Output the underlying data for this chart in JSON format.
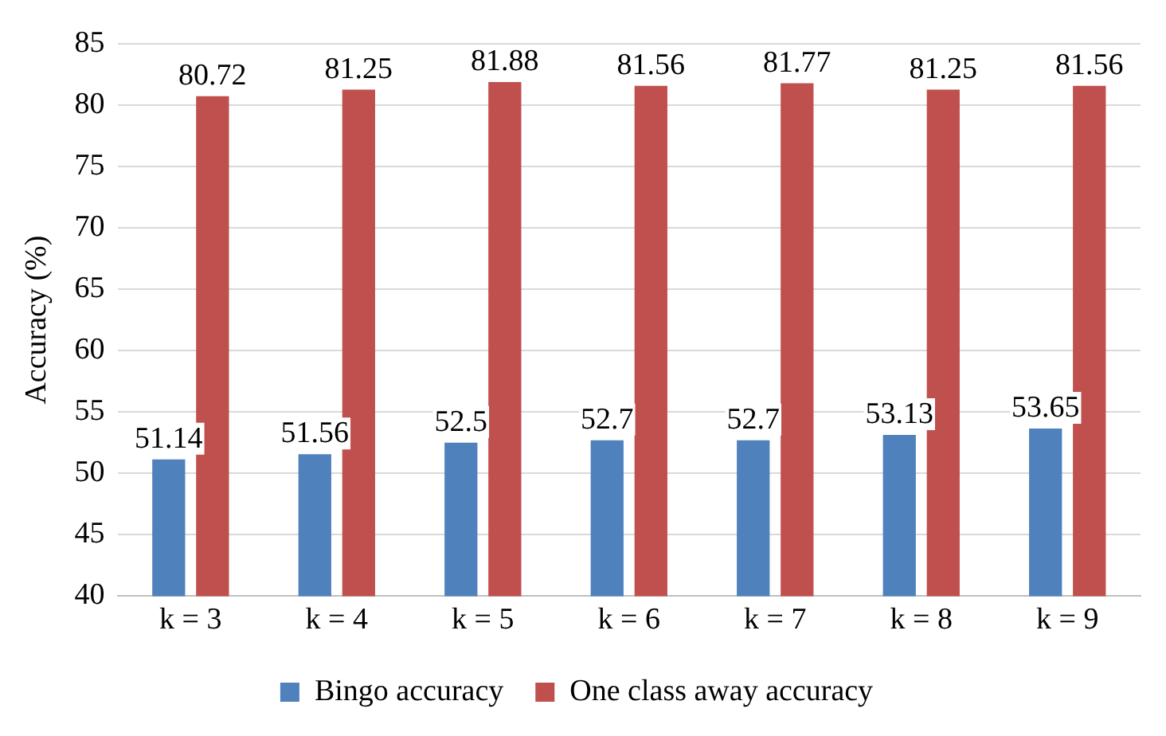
{
  "chart_data": {
    "type": "bar",
    "ylabel": "Accuracy (%)",
    "categories": [
      "k = 3",
      "k = 4",
      "k = 5",
      "k = 6",
      "k = 7",
      "k = 8",
      "k = 9"
    ],
    "series": [
      {
        "name": "Bingo accuracy",
        "color": "#4f81bd",
        "values": [
          51.14,
          51.56,
          52.5,
          52.7,
          52.7,
          53.13,
          53.65
        ]
      },
      {
        "name": "One class away accuracy",
        "color": "#c0504d",
        "values": [
          80.72,
          81.25,
          81.88,
          81.56,
          81.77,
          81.25,
          81.56
        ]
      }
    ],
    "ylim": [
      40,
      85
    ],
    "yticks": [
      40,
      45,
      50,
      55,
      60,
      65,
      70,
      75,
      80,
      85
    ],
    "grid": "y",
    "legend": "bottom",
    "data_labels": true
  }
}
